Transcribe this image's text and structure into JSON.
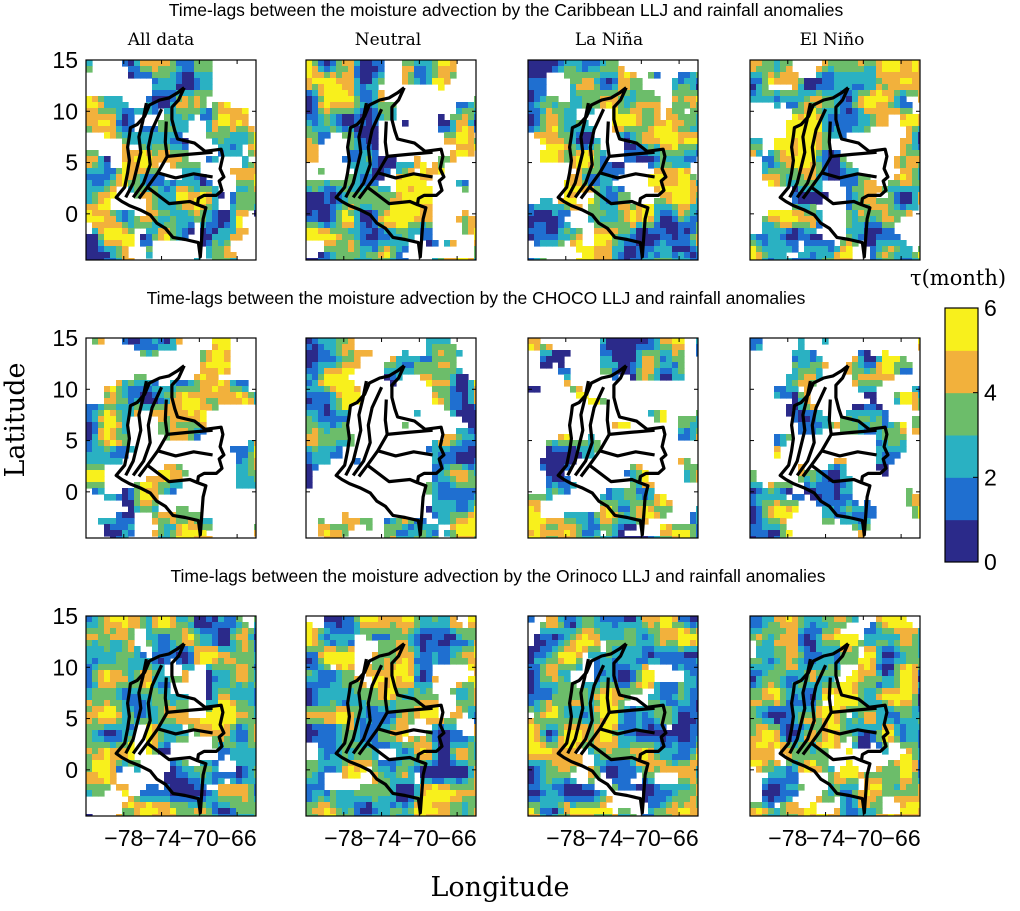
{
  "chart_data": {
    "type": "heatmap",
    "row_titles": [
      "Time-lags between the moisture advection by the Caribbean LLJ and rainfall anomalies",
      "Time-lags between the moisture advection by the CHOCO LLJ and rainfall anomalies",
      "Time-lags between the moisture advection by the Orinoco LLJ and rainfall anomalies"
    ],
    "column_titles": [
      "All data",
      "Neutral",
      "La Niña",
      "El Niño"
    ],
    "xlabel": "Longitude",
    "ylabel": "Latitude",
    "xticks": [
      "−78",
      "−74",
      "−70",
      "−66"
    ],
    "xtick_values": [
      -78,
      -74,
      -70,
      -66
    ],
    "yticks": [
      "15",
      "10",
      "5",
      "0"
    ],
    "ytick_values": [
      15,
      10,
      5,
      0
    ],
    "xlim": [
      -82,
      -64
    ],
    "ylim": [
      -4.5,
      15
    ],
    "colorbar": {
      "label": "τ(month)",
      "ticks": [
        "6",
        "4",
        "2",
        "0"
      ],
      "tick_values": [
        6,
        4,
        2,
        0
      ],
      "range": [
        0,
        6
      ],
      "levels": 6,
      "colors": [
        "#2b2a8a",
        "#1f6fd0",
        "#2ab1c2",
        "#6cbd6a",
        "#f2b13c",
        "#f8f01c"
      ]
    },
    "boundary_color": "#000000"
  }
}
